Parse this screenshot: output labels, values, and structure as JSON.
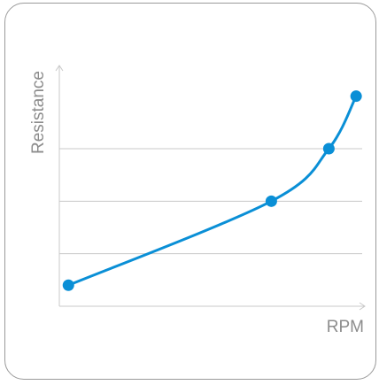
{
  "chart_data": {
    "type": "line",
    "title": "",
    "xlabel": "RPM",
    "ylabel": "Resistance",
    "xlim": [
      0,
      10
    ],
    "ylim": [
      0,
      4.5
    ],
    "grid": true,
    "gridlines_y": [
      1,
      2,
      3
    ],
    "series": [
      {
        "points": [
          {
            "x": 0.3,
            "y": 0.4
          },
          {
            "x": 7.0,
            "y": 2.0
          },
          {
            "x": 8.9,
            "y": 3.0
          },
          {
            "x": 9.8,
            "y": 4.0
          }
        ],
        "color": "#0a8fd6"
      }
    ]
  },
  "colors": {
    "line": "#0a8fd6",
    "axis": "#c8c8c8",
    "grid": "#c8c8c8",
    "label": "#8c8c8c",
    "border": "#9a9a9a"
  }
}
